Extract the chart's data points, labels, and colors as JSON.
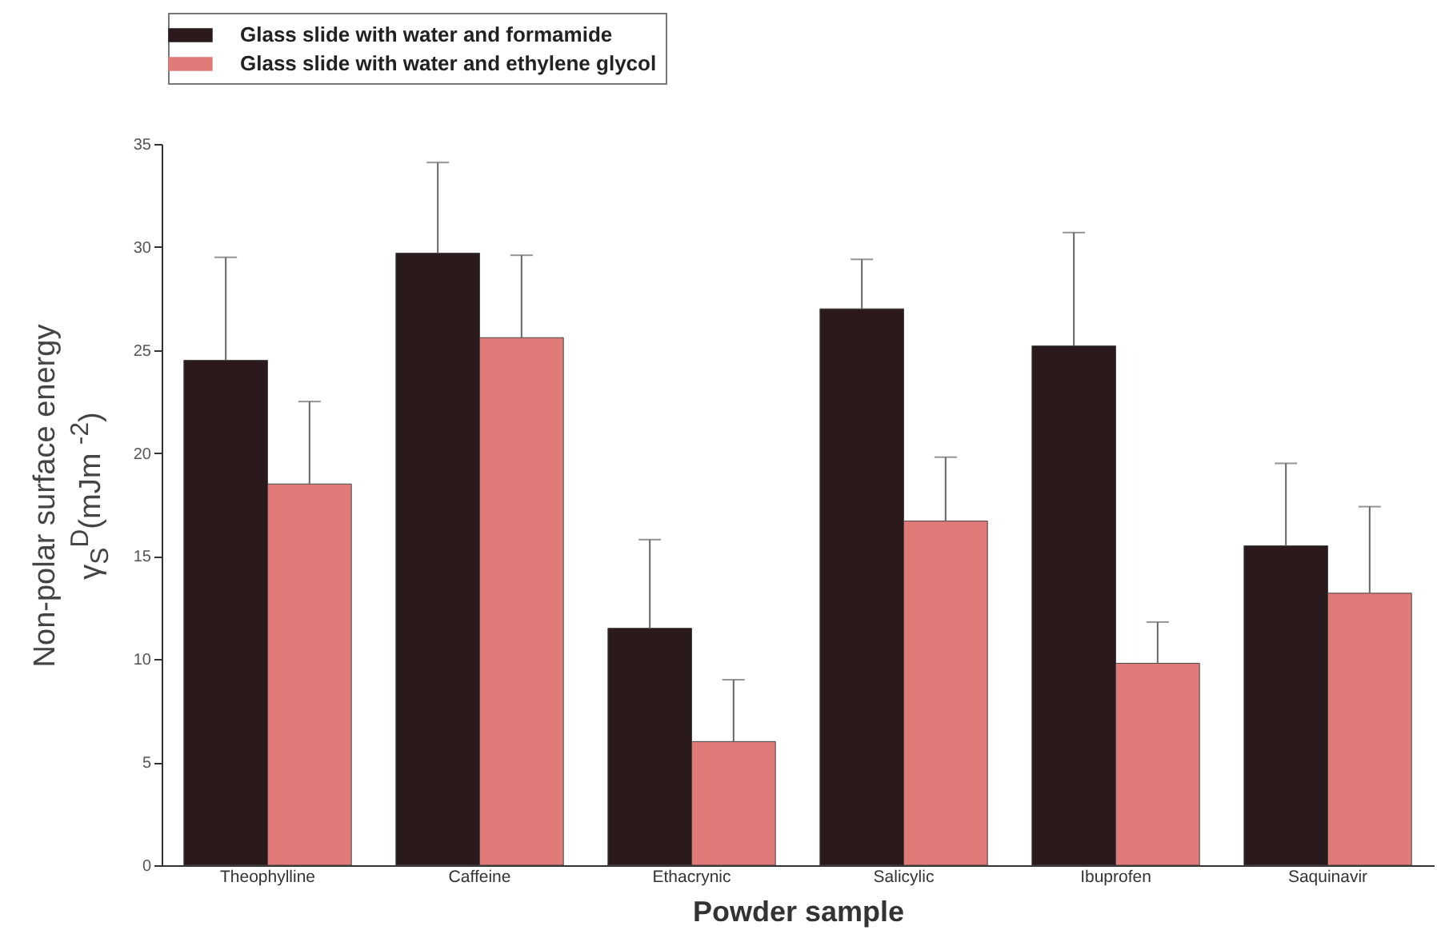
{
  "chart_data": {
    "type": "bar",
    "xlabel": "Powder sample",
    "ylabel": "Non-polar surface energy\nγ$_{S}$$^{D}$(mJm $^{-2}$)",
    "categories": [
      "Theophylline",
      "Caffeine",
      "Ethacrynic",
      "Salicylic",
      "Ibuprofen",
      "Saquinavir"
    ],
    "series": [
      {
        "name": "Glass slide with water and formamide",
        "color": "#2a1a1c",
        "values": [
          24.5,
          29.7,
          11.5,
          27.0,
          25.2,
          15.5
        ],
        "errors": [
          [
            24.5,
            29.5
          ],
          [
            29.7,
            34.1
          ],
          [
            11.5,
            15.8
          ],
          [
            27.0,
            29.4
          ],
          [
            25.2,
            30.7
          ],
          [
            15.5,
            19.5
          ]
        ]
      },
      {
        "name": "Glass slide with water and ethylene glycol",
        "color": "#e07a78",
        "values": [
          18.5,
          25.6,
          6.0,
          16.7,
          9.8,
          13.2
        ],
        "errors": [
          [
            18.5,
            22.5
          ],
          [
            25.6,
            29.6
          ],
          [
            6.0,
            9.0
          ],
          [
            16.7,
            19.8
          ],
          [
            9.8,
            11.8
          ],
          [
            13.2,
            17.4
          ]
        ]
      }
    ],
    "ylim": [
      0,
      35
    ],
    "yticks": [
      0,
      5,
      10,
      15,
      20,
      25,
      30,
      35
    ],
    "grid": false,
    "legend": "top left"
  }
}
